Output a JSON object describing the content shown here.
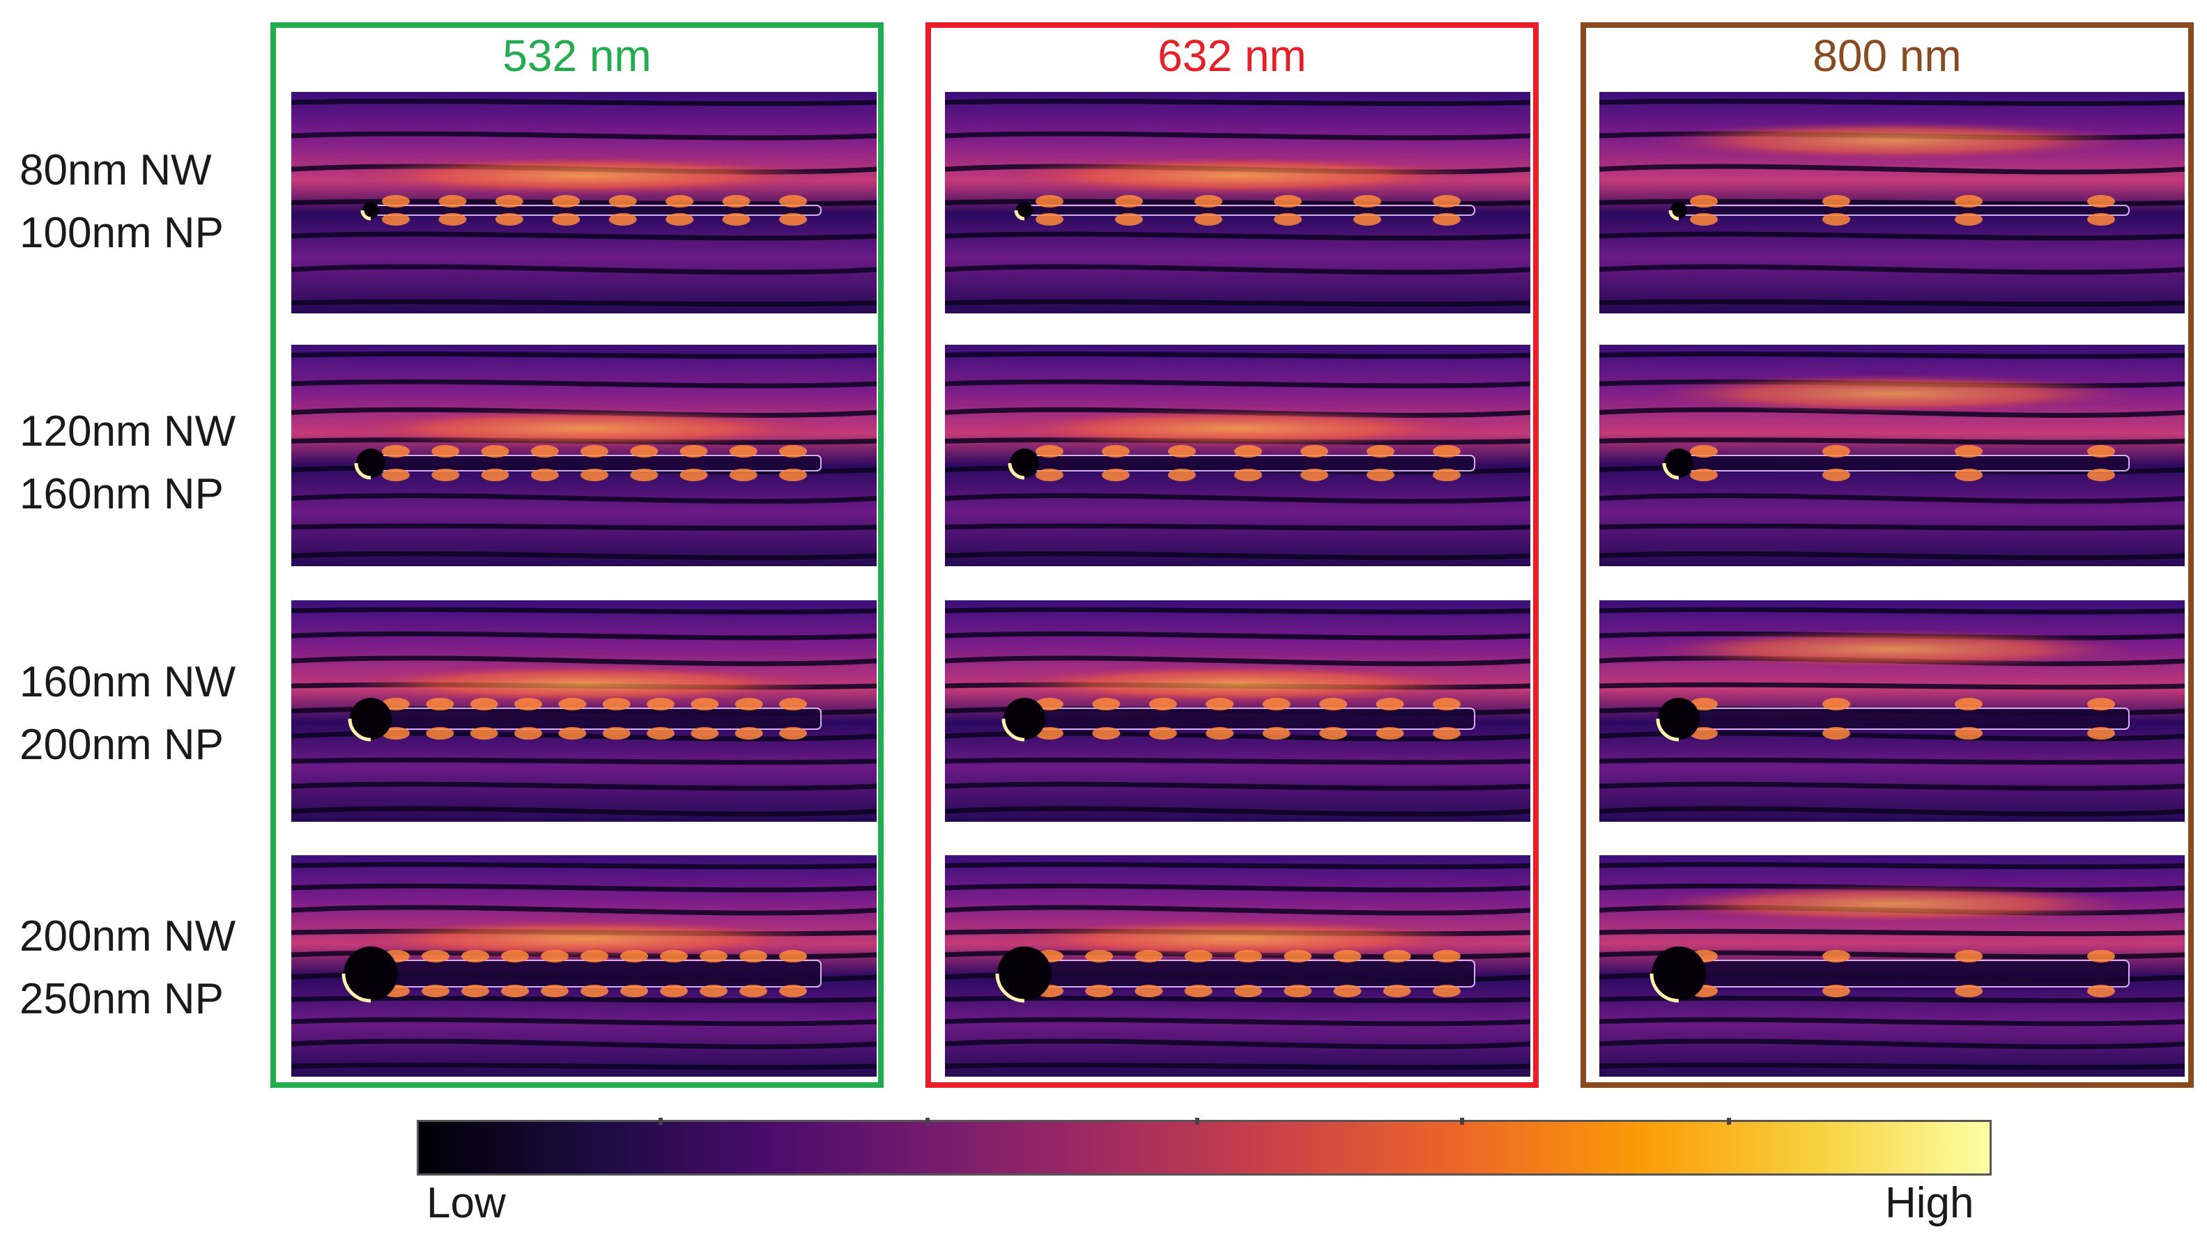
{
  "columns": [
    {
      "title": "532 nm",
      "color": "#1fae4b"
    },
    {
      "title": "632 nm",
      "color": "#ee1c24"
    },
    {
      "title": "800 nm",
      "color": "#8b4a1e"
    }
  ],
  "rows": [
    {
      "nw": "80nm NW",
      "np": "100nm NP"
    },
    {
      "nw": "120nm NW",
      "np": "160nm NP"
    },
    {
      "nw": "160nm NW",
      "np": "200nm NP"
    },
    {
      "nw": "200nm NW",
      "np": "250nm NP"
    }
  ],
  "colorbar": {
    "low_label": "Low",
    "high_label": "High",
    "colormap": [
      "#000004",
      "#1b0c41",
      "#4a0c6b",
      "#781c6d",
      "#a52c60",
      "#cf4446",
      "#ed6925",
      "#fb9b06",
      "#f7d13d",
      "#fcffa4"
    ]
  }
}
